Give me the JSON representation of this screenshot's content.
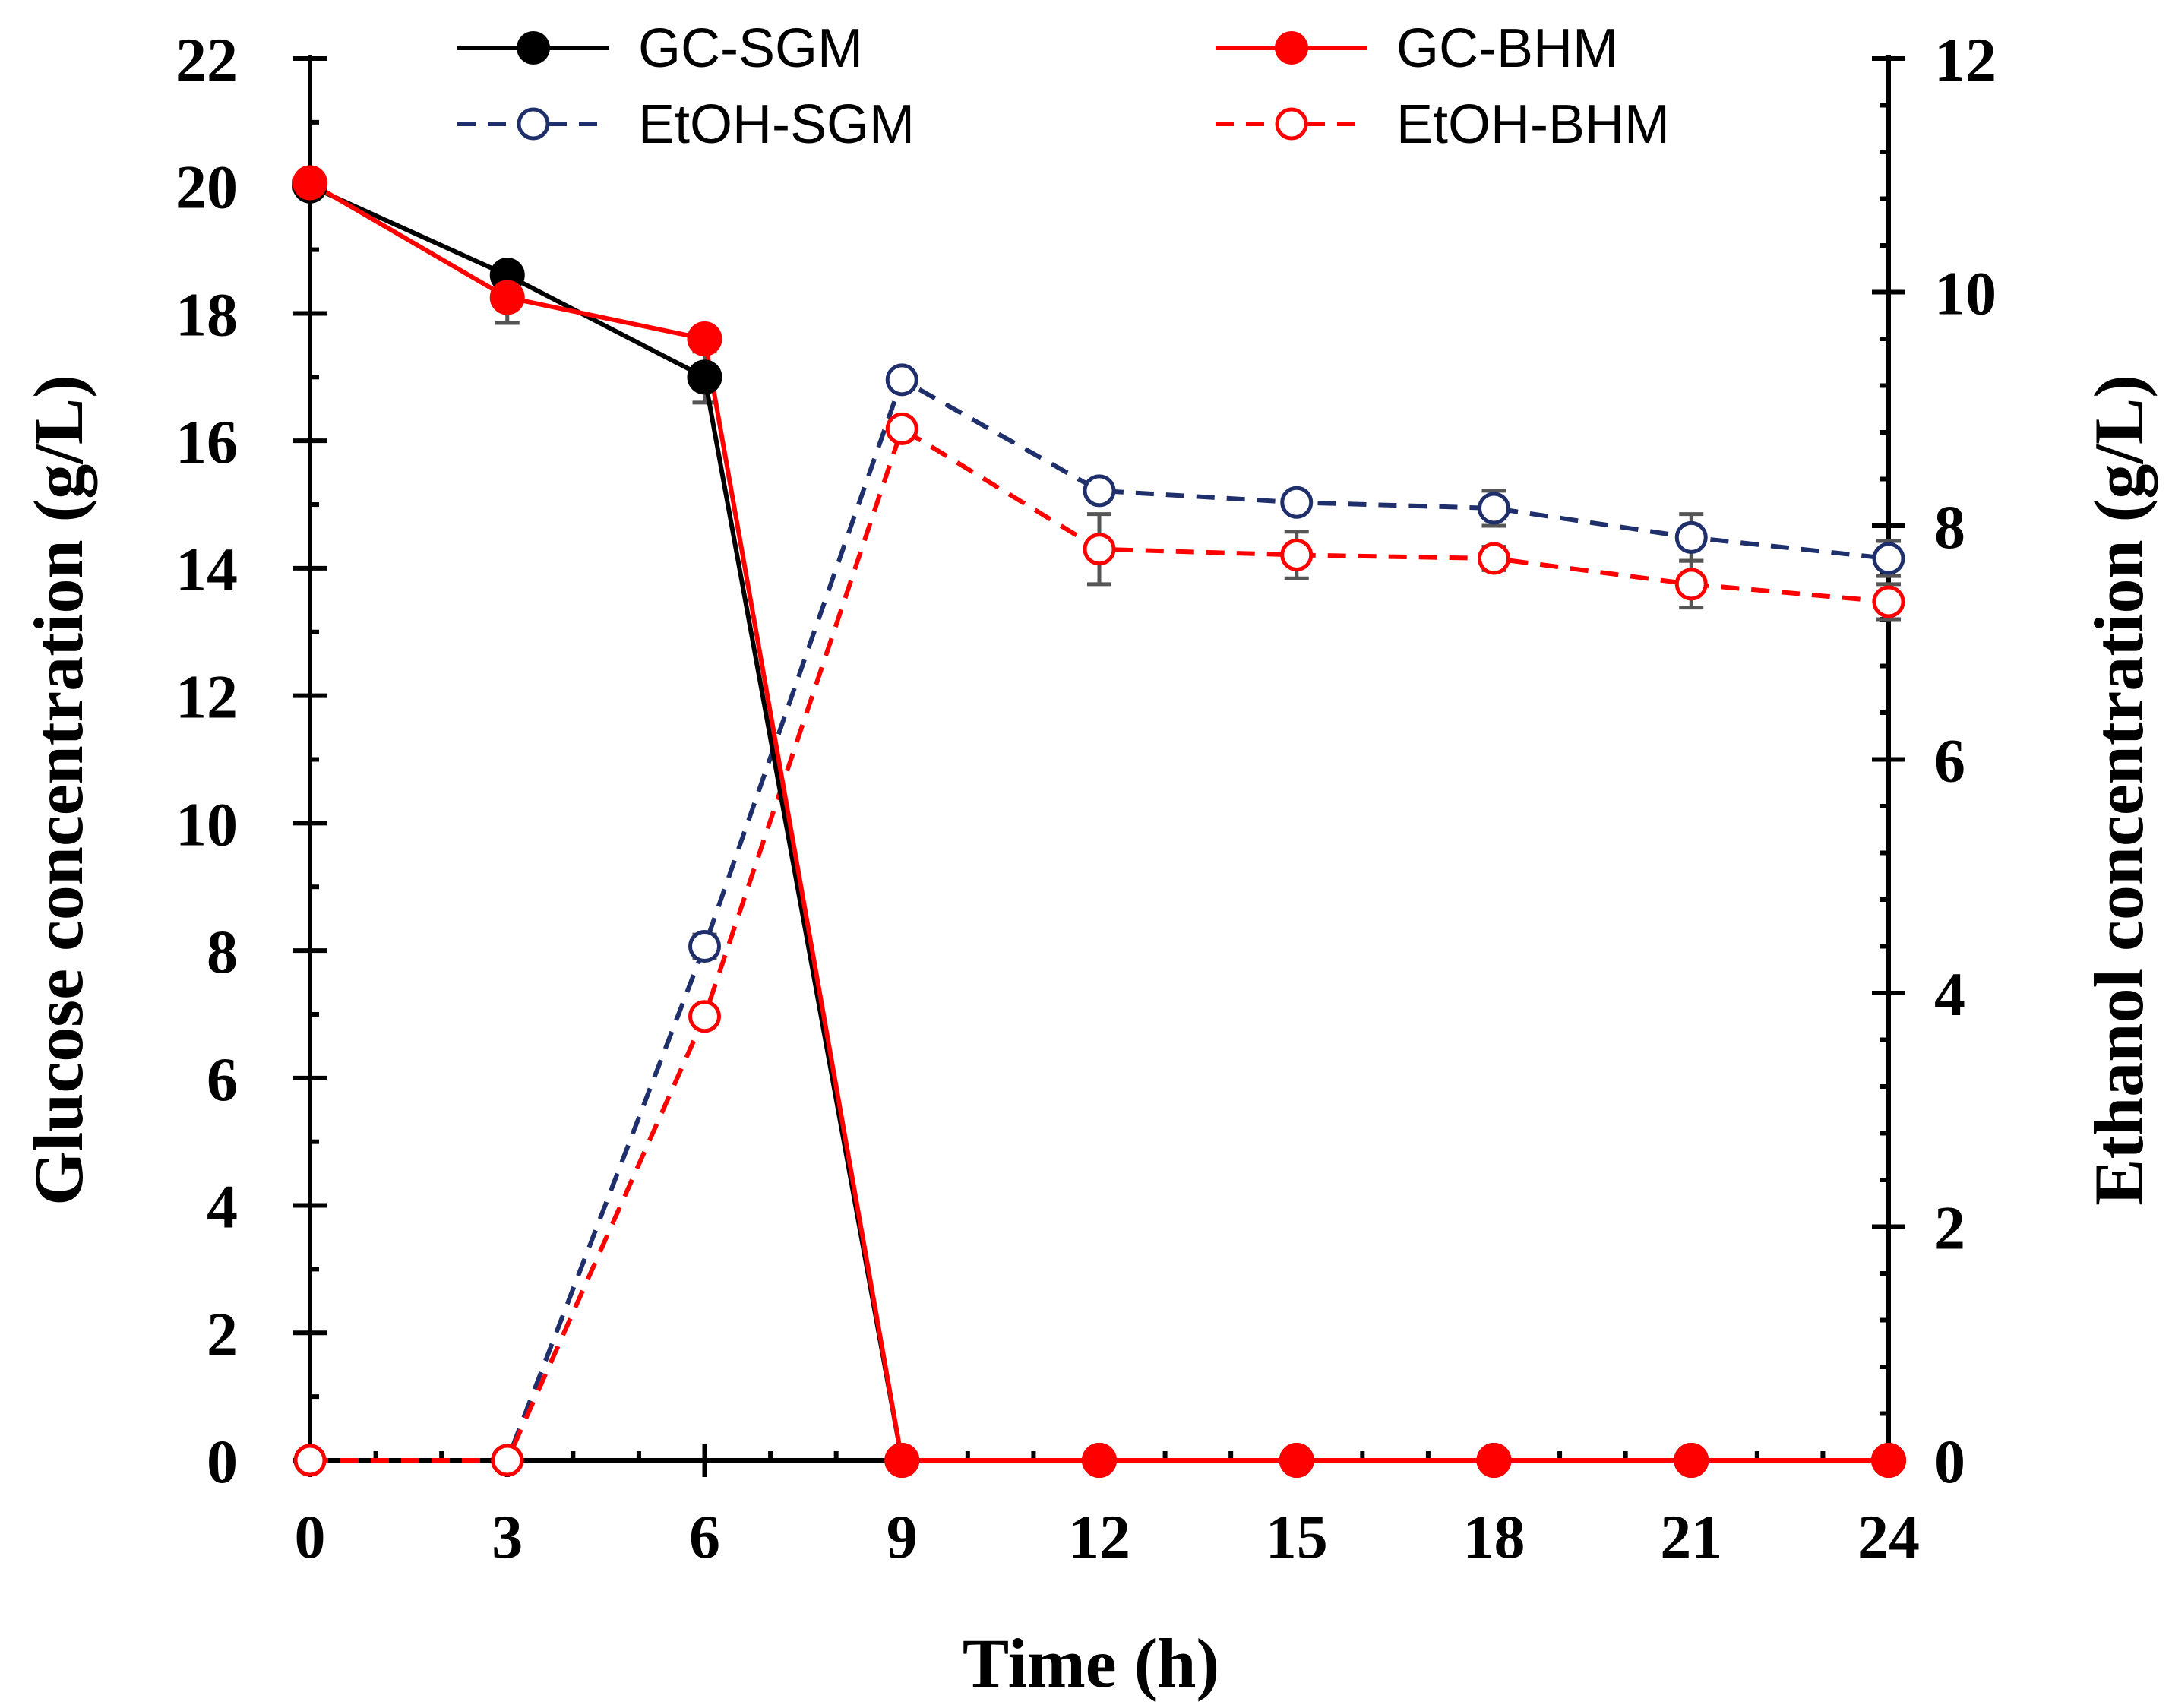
{
  "chart_data": {
    "type": "line",
    "xlabel": "Time (h)",
    "ylabel": "Glucose concentration (g/L)",
    "y2label": "Ethanol concentration (g/L)",
    "x": [
      0,
      3,
      6,
      9,
      12,
      15,
      18,
      21,
      24
    ],
    "x_ticks": [
      0,
      3,
      6,
      9,
      12,
      15,
      18,
      21,
      24
    ],
    "xlim": [
      0,
      24
    ],
    "ylim": [
      0,
      22
    ],
    "y_ticks": [
      0,
      2,
      4,
      6,
      8,
      10,
      12,
      14,
      16,
      18,
      20,
      22
    ],
    "y2lim": [
      0,
      12
    ],
    "y2_ticks": [
      0,
      2,
      4,
      6,
      8,
      10,
      12
    ],
    "grid": false,
    "legend_position": "top",
    "series": [
      {
        "name": "GC-SGM",
        "axis": "left",
        "color": "#000000",
        "style": "solid",
        "marker": "filled-circle",
        "values": [
          20.0,
          18.6,
          17.0,
          0,
          0,
          0,
          0,
          0,
          0
        ],
        "errors": [
          0,
          0.1,
          0.4,
          0,
          0,
          0,
          0,
          0,
          0
        ]
      },
      {
        "name": "GC-BHM",
        "axis": "left",
        "color": "#ff0000",
        "style": "solid",
        "marker": "filled-circle",
        "values": [
          20.05,
          18.25,
          17.6,
          0,
          0,
          0,
          0,
          0,
          0
        ],
        "errors": [
          0,
          0.4,
          0,
          0,
          0,
          0,
          0,
          0,
          0
        ]
      },
      {
        "name": "EtOH-SGM",
        "axis": "right",
        "color": "#1f2f6b",
        "style": "dashed",
        "marker": "open-circle",
        "values": [
          0,
          0,
          4.4,
          9.25,
          8.3,
          8.2,
          8.15,
          7.9,
          7.72
        ],
        "errors": [
          0,
          0,
          0.1,
          0,
          0.05,
          0,
          0.15,
          0.2,
          0.15
        ]
      },
      {
        "name": "EtOH-BHM",
        "axis": "right",
        "color": "#ff0000",
        "style": "dashed",
        "marker": "open-circle",
        "values": [
          0,
          0,
          3.8,
          8.83,
          7.8,
          7.75,
          7.72,
          7.5,
          7.35
        ],
        "errors": [
          0,
          0,
          0,
          0,
          0.3,
          0.2,
          0.1,
          0.2,
          0.15
        ]
      }
    ]
  }
}
